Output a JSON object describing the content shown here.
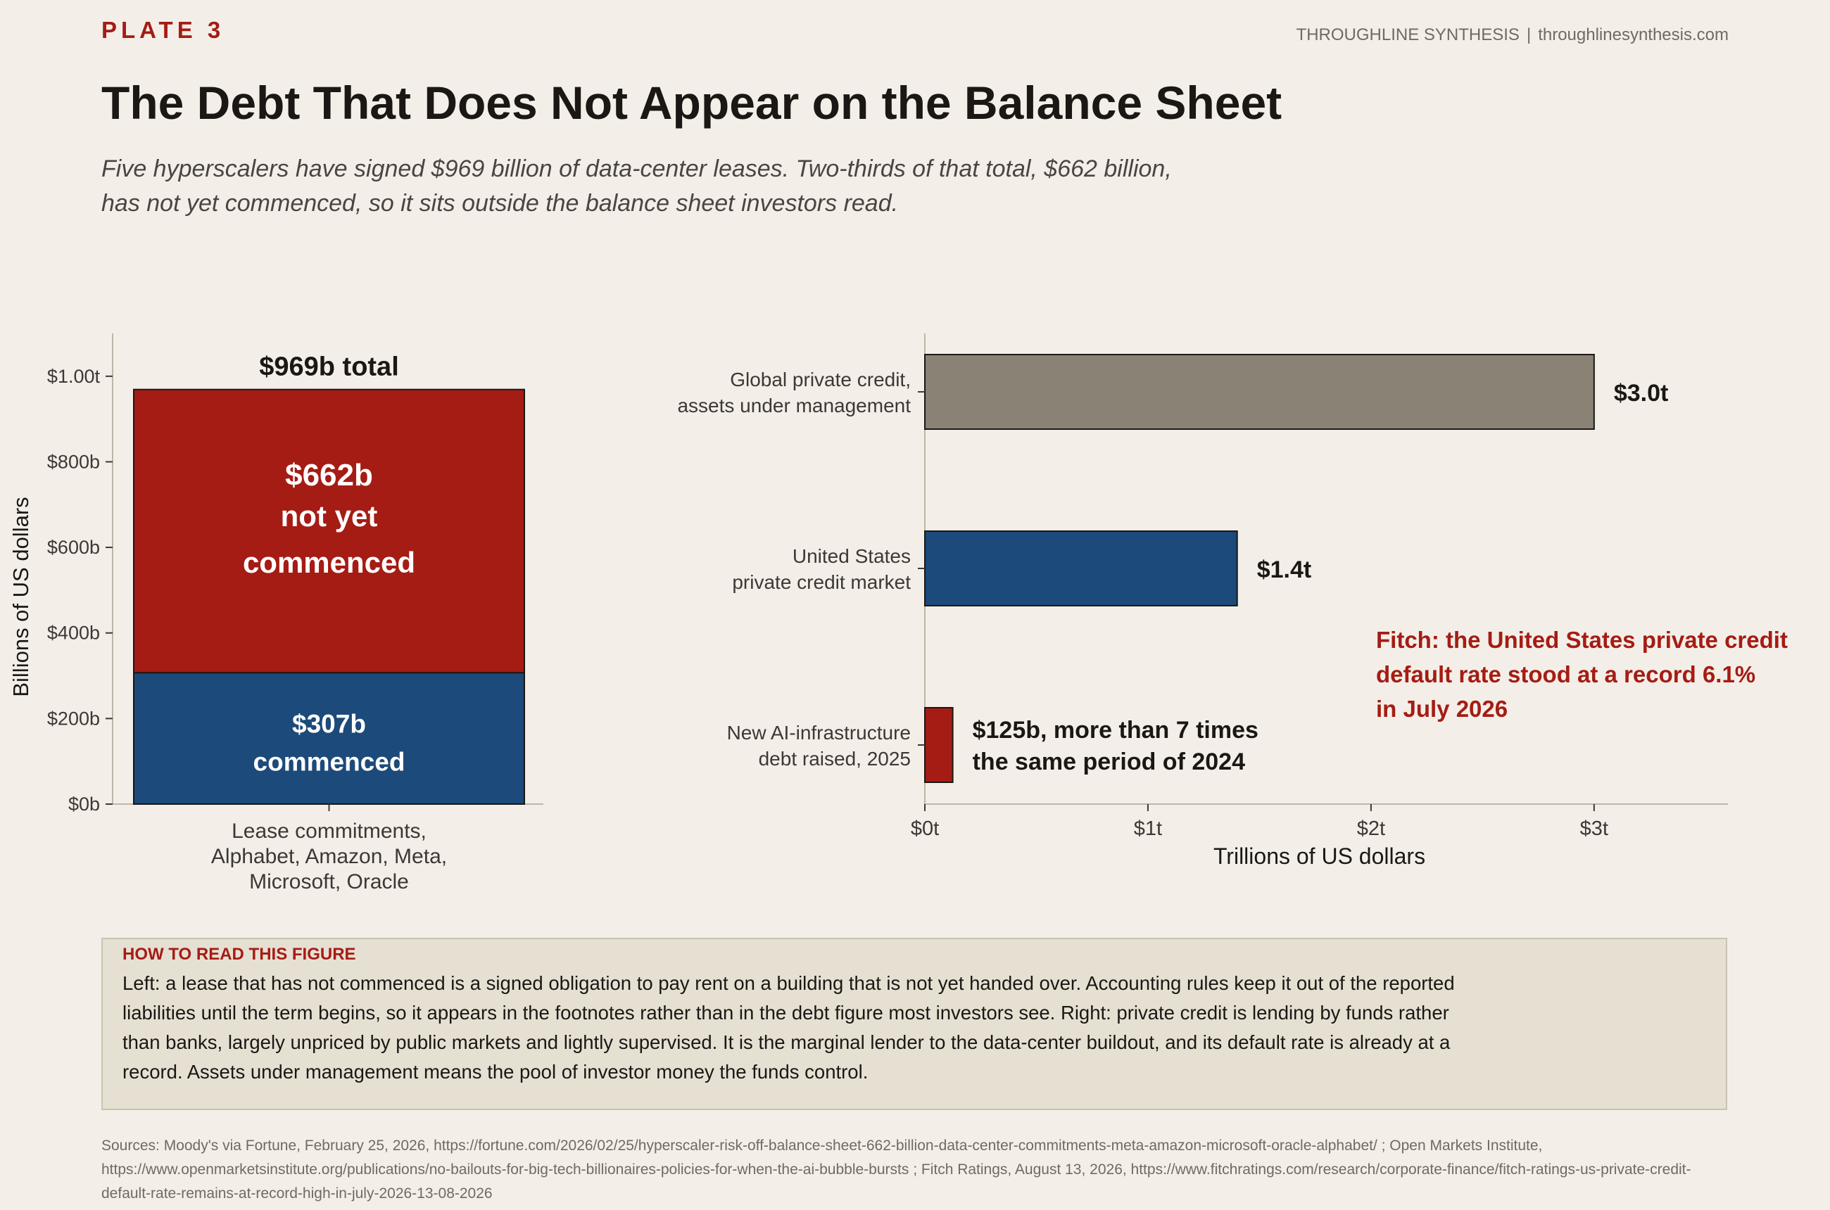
{
  "header": {
    "plate": "PLATE 3",
    "brand_name": "THROUGHLINE SYNTHESIS",
    "brand_sep": "|",
    "brand_url": "throughlinesynthesis.com"
  },
  "title": "The Debt That Does Not Appear on the Balance Sheet",
  "subtitle_lines": [
    "Five hyperscalers have signed $969 billion of data-center leases. Two-thirds of that total, $662 billion,",
    "has not yet commenced, so it sits outside the balance sheet investors read."
  ],
  "colors": {
    "red": "#a51c14",
    "blue": "#1c4a7a",
    "gray": "#8a8275",
    "text": "#1a1714",
    "background": "#f3efe8"
  },
  "chart_data": [
    {
      "type": "bar",
      "stacked": true,
      "ylabel": "Billions of US dollars",
      "ylim": [
        0,
        1100
      ],
      "yticks": [
        0,
        200,
        400,
        600,
        800,
        1000
      ],
      "ytick_labels": [
        "$0b",
        "$200b",
        "$400b",
        "$600b",
        "$800b",
        "$1.00t"
      ],
      "categories": [
        "Lease commitments,\nAlphabet, Amazon, Meta,\nMicrosoft, Oracle"
      ],
      "category_label_lines": [
        "Lease commitments,",
        "Alphabet, Amazon, Meta,",
        "Microsoft, Oracle"
      ],
      "total_label": "$969b total",
      "series": [
        {
          "values": [
            307
          ],
          "color": "#1c4a7a",
          "label_lines": [
            "$307b",
            "commenced"
          ]
        },
        {
          "values": [
            662
          ],
          "color": "#a51c14",
          "label_lines": [
            "$662b",
            "not yet",
            "commenced"
          ]
        }
      ]
    },
    {
      "type": "bar",
      "orientation": "horizontal",
      "xlabel": "Trillions of US dollars",
      "xlim": [
        0,
        3.6
      ],
      "xticks": [
        0,
        1,
        2,
        3
      ],
      "xtick_labels": [
        "$0t",
        "$1t",
        "$2t",
        "$3t"
      ],
      "bars": [
        {
          "category_lines": [
            "Global private credit,",
            "assets under management"
          ],
          "value": 3.0,
          "color": "#8a8275",
          "label_lines": [
            "$3.0t"
          ]
        },
        {
          "category_lines": [
            "United States",
            "private credit market"
          ],
          "value": 1.4,
          "color": "#1c4a7a",
          "label_lines": [
            "$1.4t"
          ]
        },
        {
          "category_lines": [
            "New AI-infrastructure",
            "debt raised, 2025"
          ],
          "value": 0.125,
          "color": "#a51c14",
          "label_lines": [
            "$125b, more than 7 times",
            "the same period of 2024"
          ]
        }
      ],
      "annotation_lines": [
        "Fitch: the United States private credit",
        "default rate stood at a record 6.1%",
        "in July 2026"
      ]
    }
  ],
  "how_to_read": {
    "title": "HOW TO READ THIS FIGURE",
    "body": "Left: a lease that has not commenced is a signed obligation to pay rent on a building that is not yet handed over. Accounting rules keep it out of the reported liabilities until the term begins, so it appears in the footnotes rather than in the debt figure most investors see. Right: private credit is lending by funds rather than banks, largely unpriced by public markets and lightly supervised. It is the marginal lender to the data-center buildout, and its default rate is already at a record. Assets under management means the pool of investor money the funds control."
  },
  "sources": "Sources: Moody's via Fortune, February 25, 2026, https://fortune.com/2026/02/25/hyperscaler-risk-off-balance-sheet-662-billion-data-center-commitments-meta-amazon-microsoft-oracle-alphabet/ ; Open Markets Institute, https://www.openmarketsinstitute.org/publications/no-bailouts-for-big-tech-billionaires-policies-for-when-the-ai-bubble-bursts ; Fitch Ratings, August 13, 2026, https://www.fitchratings.com/research/corporate-finance/fitch-ratings-us-private-credit-default-rate-remains-at-record-high-in-july-2026-13-08-2026"
}
